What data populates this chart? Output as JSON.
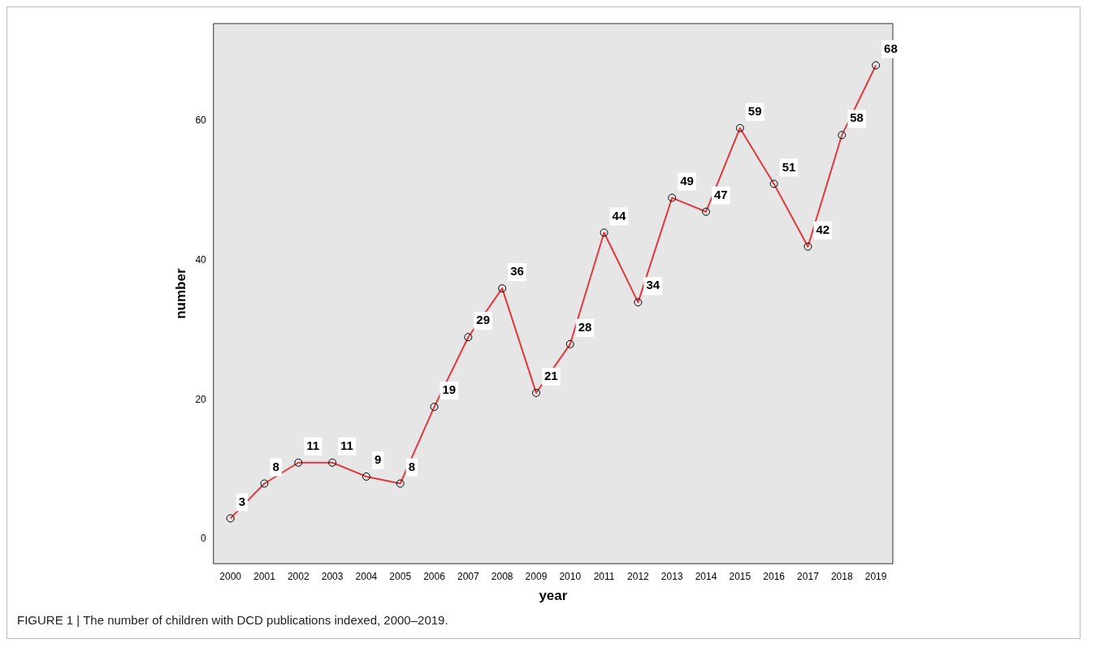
{
  "chart_data": {
    "type": "line",
    "xlabel": "year",
    "ylabel": "number",
    "categories": [
      "2000",
      "2001",
      "2002",
      "2003",
      "2004",
      "2005",
      "2006",
      "2007",
      "2008",
      "2009",
      "2010",
      "2011",
      "2012",
      "2013",
      "2014",
      "2015",
      "2016",
      "2017",
      "2018",
      "2019"
    ],
    "series": [
      {
        "color": "#e0393e",
        "values": [
          3,
          8,
          11,
          11,
          9,
          8,
          19,
          29,
          36,
          21,
          28,
          44,
          34,
          49,
          47,
          59,
          51,
          42,
          58,
          68
        ]
      }
    ],
    "ylim": [
      -3.5,
      74
    ],
    "yticks": [
      0,
      20,
      40,
      60
    ],
    "grid": false,
    "legend": false,
    "marker": "circle",
    "line_style": "solid",
    "data_labels": true,
    "annotations": [
      "FIGURE 1 | The number of children with DCD publications indexed, 2000–2019."
    ]
  }
}
